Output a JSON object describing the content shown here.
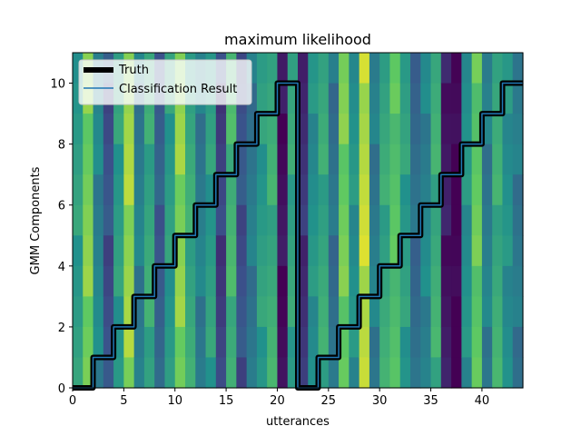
{
  "chart_data": {
    "type": "line",
    "title": "maximum likelihood",
    "xlabel": "utterances",
    "ylabel": "GMM Components",
    "xlim": [
      0,
      44
    ],
    "ylim": [
      0,
      11
    ],
    "xticks": [
      0,
      5,
      10,
      15,
      20,
      25,
      30,
      35,
      40
    ],
    "yticks": [
      0,
      2,
      4,
      6,
      8,
      10
    ],
    "legend_position": "upper-left",
    "background": {
      "type": "heatmap",
      "colormap": "viridis",
      "rows": 11,
      "columns": 44,
      "column_base": [
        0.55,
        0.8,
        0.45,
        0.25,
        0.55,
        0.85,
        0.42,
        0.6,
        0.3,
        0.55,
        0.82,
        0.6,
        0.42,
        0.55,
        0.2,
        0.65,
        0.25,
        0.4,
        0.55,
        0.62,
        0.05,
        0.58,
        0.15,
        0.5,
        0.6,
        0.38,
        0.78,
        0.5,
        0.9,
        0.42,
        0.6,
        0.72,
        0.55,
        0.35,
        0.45,
        0.62,
        0.08,
        0.0,
        0.5,
        0.75,
        0.42,
        0.62,
        0.5,
        0.4
      ]
    },
    "series": [
      {
        "name": "Truth",
        "color": "#000000",
        "x": [
          0,
          1,
          2,
          3,
          4,
          5,
          6,
          7,
          8,
          9,
          10,
          11,
          12,
          13,
          14,
          15,
          16,
          17,
          18,
          19,
          20,
          21,
          22,
          23,
          24,
          25,
          26,
          27,
          28,
          29,
          30,
          31,
          32,
          33,
          34,
          35,
          36,
          37,
          38,
          39,
          40,
          41,
          42,
          43
        ],
        "y": [
          0,
          0,
          1,
          1,
          2,
          2,
          3,
          3,
          4,
          4,
          5,
          5,
          6,
          6,
          7,
          7,
          8,
          8,
          9,
          9,
          10,
          10,
          0,
          0,
          1,
          1,
          2,
          2,
          3,
          3,
          4,
          4,
          5,
          5,
          6,
          6,
          7,
          7,
          8,
          8,
          9,
          9,
          10,
          10
        ]
      },
      {
        "name": "Classification Result",
        "color": "#1f77b4",
        "x": [
          0,
          1,
          2,
          3,
          4,
          5,
          6,
          7,
          8,
          9,
          10,
          11,
          12,
          13,
          14,
          15,
          16,
          17,
          18,
          19,
          20,
          21,
          22,
          23,
          24,
          25,
          26,
          27,
          28,
          29,
          30,
          31,
          32,
          33,
          34,
          35,
          36,
          37,
          38,
          39,
          40,
          41,
          42,
          43
        ],
        "y": [
          0,
          0,
          1,
          1,
          2,
          2,
          3,
          3,
          4,
          4,
          5,
          5,
          6,
          6,
          7,
          7,
          8,
          8,
          9,
          9,
          10,
          10,
          0,
          0,
          1,
          1,
          2,
          2,
          3,
          3,
          4,
          4,
          5,
          5,
          6,
          6,
          7,
          7,
          8,
          8,
          9,
          9,
          10,
          10
        ]
      }
    ]
  }
}
